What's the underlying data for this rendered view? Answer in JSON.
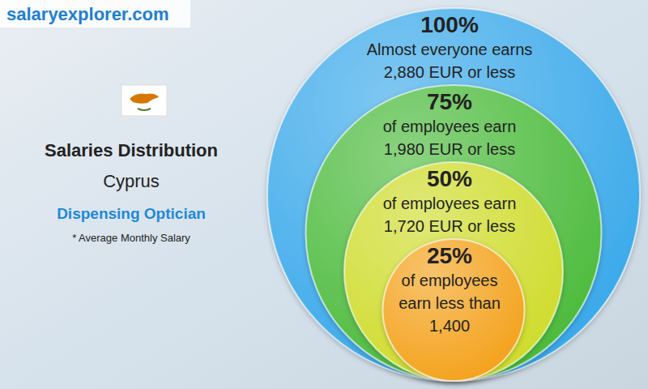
{
  "chart_data": {
    "type": "nested_circles",
    "site": "salaryexplorer.com",
    "title": "Salaries Distribution",
    "subtitle": "Cyprus",
    "job_title": "Dispensing Optician",
    "note": "* Average Monthly Salary",
    "values": [
      100,
      75,
      50,
      25
    ],
    "value_labels": [
      "100%",
      "75%",
      "50%",
      "25%"
    ],
    "descriptions": [
      [
        "Almost everyone earns"
      ],
      [
        "of employees earn"
      ],
      [
        "of employees earn"
      ],
      [
        "of employees",
        "earn less than"
      ]
    ],
    "salaries": [
      2880,
      1980,
      1720,
      1400
    ],
    "salary_labels": [
      "2,880 EUR or less",
      "1,980 EUR or less",
      "1,720 EUR or less",
      "1,400"
    ],
    "colors": [
      "#3aa9ea",
      "#4cbb3c",
      "#cfdc2c",
      "#f4a21c"
    ]
  }
}
